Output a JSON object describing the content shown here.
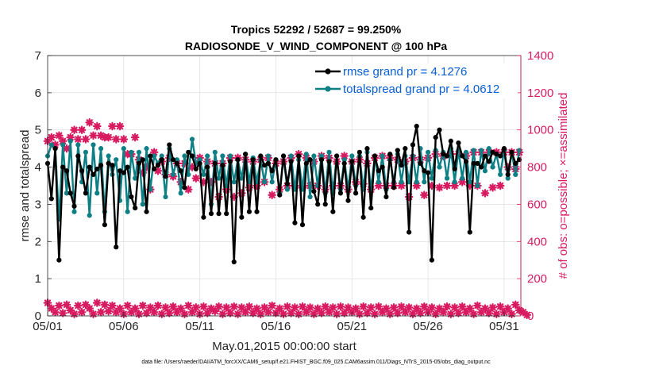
{
  "chart_data": {
    "type": "line",
    "title_line1": "Tropics 52292 / 52687 = 99.250%",
    "title_line2": "RADIOSONDE_V_WIND_COMPONENT @ 100 hPa",
    "xlabel": "May.01,2015 00:00:00 start",
    "ylabel": "rmse and totalspread",
    "y2label": "# of obs: o=possible; ×=assimilated",
    "footnote": "data file: /Users/raeder/DAI/ATM_forcXX/CAM6_setup/f.e21.FHIST_BGC.f09_025.CAM6assim.011/Diags_NTrS_2015-05/obs_diag_output.nc",
    "xlim": [
      1,
      32.1
    ],
    "ylim": [
      0,
      7
    ],
    "y2lim": [
      0,
      1400
    ],
    "x_ticks": [
      1,
      6,
      11,
      16,
      21,
      26,
      31
    ],
    "x_tick_labels": [
      "05/01",
      "05/06",
      "05/11",
      "05/16",
      "05/21",
      "05/26",
      "05/31"
    ],
    "y_ticks": [
      0,
      1,
      2,
      3,
      4,
      5,
      6,
      7
    ],
    "y_tick_labels": [
      "0",
      "1",
      "2",
      "3",
      "4",
      "5",
      "6",
      "7"
    ],
    "y2_ticks": [
      0,
      200,
      400,
      600,
      800,
      1000,
      1200,
      1400
    ],
    "y2_tick_labels": [
      "0",
      "200",
      "400",
      "600",
      "800",
      "1000",
      "1200",
      "1400"
    ],
    "series": [
      {
        "name": "rmse grand pr = 4.1276",
        "color": "#000000",
        "marker": "circle",
        "axis": "left",
        "values": [
          4.1,
          3.15,
          4.5,
          1.5,
          4.0,
          3.9,
          3.3,
          2.95,
          4.3,
          3.9,
          3.3,
          4.0,
          3.8,
          3.95,
          4.05,
          2.45,
          4.1,
          4.05,
          1.85,
          3.9,
          3.85,
          4.0,
          3.2,
          2.9,
          4.1,
          4.2,
          2.8,
          4.3,
          3.95,
          4.05,
          4.2,
          3.75,
          4.6,
          4.2,
          4.1,
          3.9,
          3.45,
          4.4,
          4.3,
          3.95,
          4.1,
          2.65,
          4.0,
          2.75,
          4.1,
          2.75,
          4.05,
          2.75,
          4.15,
          1.45,
          4.2,
          2.65,
          4.35,
          2.8,
          4.2,
          2.8,
          4.3,
          4.05,
          4.1,
          3.9,
          4.2,
          3.25,
          4.3,
          3.55,
          4.15,
          2.5,
          4.3,
          2.45,
          4.1,
          4.2,
          3.35,
          3.0,
          4.2,
          3.0,
          4.15,
          2.8,
          4.3,
          3.3,
          4.1,
          3.1,
          4.15,
          3.3,
          4.4,
          2.65,
          4.5,
          2.9,
          4.3,
          3.9,
          4.0,
          3.2,
          4.35,
          3.45,
          4.45,
          4.05,
          4.5,
          2.25,
          4.6,
          5.1,
          4.1,
          3.9,
          3.85,
          1.5,
          4.8,
          5.0,
          4.35,
          4.3,
          4.7,
          3.95,
          4.65,
          4.3,
          4.15,
          2.25,
          4.1,
          4.1,
          4.0,
          4.3,
          4.15,
          4.4,
          4.35,
          4.3,
          4.5,
          3.8,
          4.4,
          4.1,
          4.2
        ]
      },
      {
        "name": "totalspread grand pr = 4.0612",
        "color": "#0e7f84",
        "marker": "circle",
        "axis": "left",
        "values": [
          4.3,
          4.6,
          4.5,
          2.6,
          4.6,
          3.3,
          4.7,
          2.8,
          4.6,
          3.6,
          4.4,
          2.7,
          4.6,
          3.3,
          4.5,
          2.8,
          4.3,
          3.8,
          4.2,
          3.1,
          4.5,
          2.8,
          4.4,
          3.7,
          4.4,
          3.0,
          4.5,
          3.4,
          4.3,
          4.1,
          4.3,
          3.2,
          4.5,
          3.8,
          4.2,
          3.3,
          4.3,
          3.8,
          4.75,
          4.1,
          4.2,
          3.8,
          4.3,
          3.0,
          4.4,
          3.7,
          4.3,
          3.5,
          4.3,
          3.6,
          4.2,
          3.7,
          4.35,
          3.6,
          4.25,
          3.6,
          4.2,
          3.6,
          4.3,
          3.6,
          4.2,
          3.3,
          4.3,
          3.4,
          4.3,
          3.4,
          4.2,
          3.4,
          4.35,
          3.2,
          4.3,
          3.5,
          4.3,
          3.3,
          4.4,
          3.3,
          4.3,
          3.4,
          4.2,
          3.4,
          4.3,
          3.5,
          4.3,
          3.4,
          4.4,
          3.4,
          4.3,
          3.6,
          4.3,
          3.4,
          4.2,
          3.6,
          4.35,
          3.6,
          4.3,
          3.6,
          4.3,
          3.6,
          4.5,
          3.6,
          4.4,
          3.7,
          4.45,
          4.0,
          4.4,
          3.7,
          4.5,
          3.6,
          4.45,
          3.7,
          4.4,
          3.6,
          4.45,
          3.5,
          4.45,
          3.9,
          4.5,
          4.0,
          4.35,
          3.8,
          4.45,
          3.7,
          4.4,
          3.8,
          4.45
        ]
      },
      {
        "name": "obs possible",
        "color": "#d81b60",
        "marker": "o",
        "axis": "right",
        "values": [
          940,
          960,
          920,
          970,
          940,
          900,
          960,
          1000,
          950,
          1000,
          950,
          1040,
          970,
          1020,
          970,
          960,
          960,
          1020,
          950,
          1020,
          950,
          870,
          870,
          960,
          840,
          770,
          800,
          680,
          880,
          780,
          830,
          760,
          850,
          750,
          820,
          720,
          820,
          680,
          800,
          740,
          850,
          720,
          830,
          720,
          820,
          640,
          820,
          680,
          850,
          640,
          850,
          660,
          840,
          690,
          830,
          700,
          840,
          720,
          850,
          650,
          820,
          680,
          830,
          700,
          850,
          700,
          870,
          690,
          850,
          700,
          830,
          700,
          860,
          680,
          850,
          700,
          830,
          700,
          860,
          680,
          830,
          720,
          840,
          710,
          820,
          680,
          850,
          700,
          860,
          700,
          850,
          700,
          840,
          700,
          830,
          640,
          850,
          700,
          840,
          650,
          850,
          700,
          870,
          690,
          860,
          700,
          870,
          700,
          870,
          720,
          860,
          700,
          880,
          700,
          880,
          660,
          880,
          690,
          880,
          700,
          880,
          800,
          880,
          790,
          880
        ]
      },
      {
        "name": "obs assimilated",
        "color": "#d81b60",
        "marker": "x",
        "axis": "right",
        "values": [
          70,
          40,
          20,
          55,
          15,
          60,
          30,
          10,
          55,
          20,
          60,
          40,
          10,
          70,
          20,
          60,
          25,
          55,
          20,
          40,
          10,
          55,
          20,
          40,
          10,
          55,
          15,
          45,
          20,
          55,
          10,
          45,
          15,
          50,
          20,
          40,
          10,
          55,
          20,
          45,
          10,
          50,
          15,
          40,
          25,
          50,
          10,
          45,
          15,
          50,
          10,
          45,
          20,
          50,
          15,
          40,
          10,
          45,
          20,
          55,
          15,
          40,
          10,
          50,
          15,
          45,
          10,
          50,
          20,
          45,
          10,
          40,
          15,
          50,
          20,
          45,
          10,
          50,
          15,
          45,
          20,
          40,
          10,
          50,
          15,
          45,
          10,
          50,
          20,
          40,
          10,
          45,
          15,
          50,
          20,
          45,
          10,
          40,
          15,
          50,
          20,
          45,
          10,
          40,
          20,
          50,
          10,
          45,
          15,
          50,
          20,
          40,
          10,
          55,
          20,
          40,
          15,
          45,
          10,
          50,
          20,
          40,
          10,
          60,
          30,
          20,
          5
        ]
      }
    ]
  }
}
